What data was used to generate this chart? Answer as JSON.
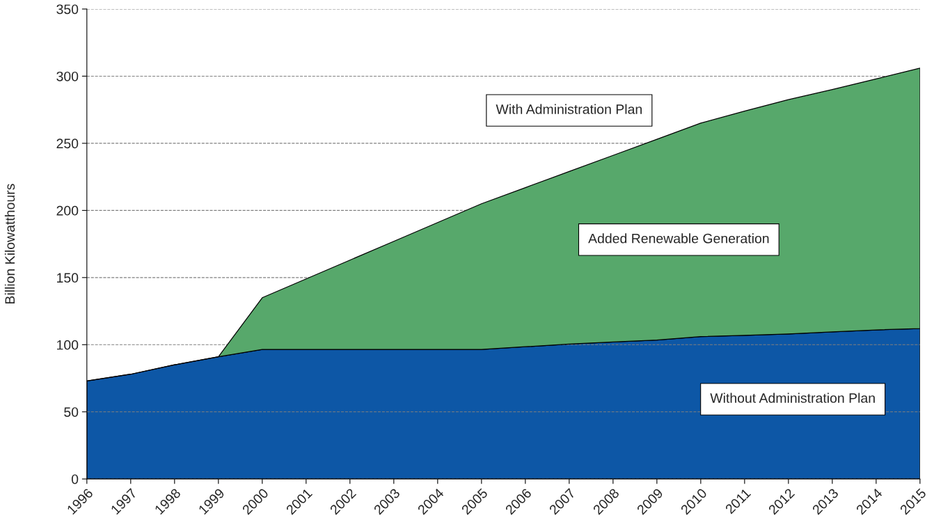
{
  "chart_data": {
    "type": "area",
    "stacked": true,
    "ylabel": "Billion Kilowatthours",
    "categories": [
      "1996",
      "1997",
      "1998",
      "1999",
      "2000",
      "2001",
      "2002",
      "2003",
      "2004",
      "2005",
      "2006",
      "2007",
      "2008",
      "2009",
      "2010",
      "2011",
      "2012",
      "2013",
      "2014",
      "2015"
    ],
    "series": [
      {
        "name": "Without Administration Plan",
        "color": "#0d57a6",
        "values": [
          73,
          78,
          85,
          91,
          96.5,
          96.5,
          96.5,
          96.5,
          96.5,
          96.5,
          98.5,
          100.5,
          102,
          103.5,
          106,
          107,
          108,
          109.5,
          111,
          112
        ]
      },
      {
        "name": "Added Renewable Generation",
        "color": "#57a86b",
        "values": [
          0,
          0,
          0,
          0,
          38.5,
          52.5,
          66.5,
          80.5,
          94.5,
          108.5,
          118.5,
          128.5,
          139,
          149.5,
          159,
          167,
          174.5,
          180.5,
          187,
          194
        ]
      }
    ],
    "annotations": [
      "With Administration Plan"
    ],
    "ylim": [
      0,
      350
    ],
    "yticks": [
      0,
      50,
      100,
      150,
      200,
      250,
      300,
      350
    ],
    "grid": "y"
  }
}
